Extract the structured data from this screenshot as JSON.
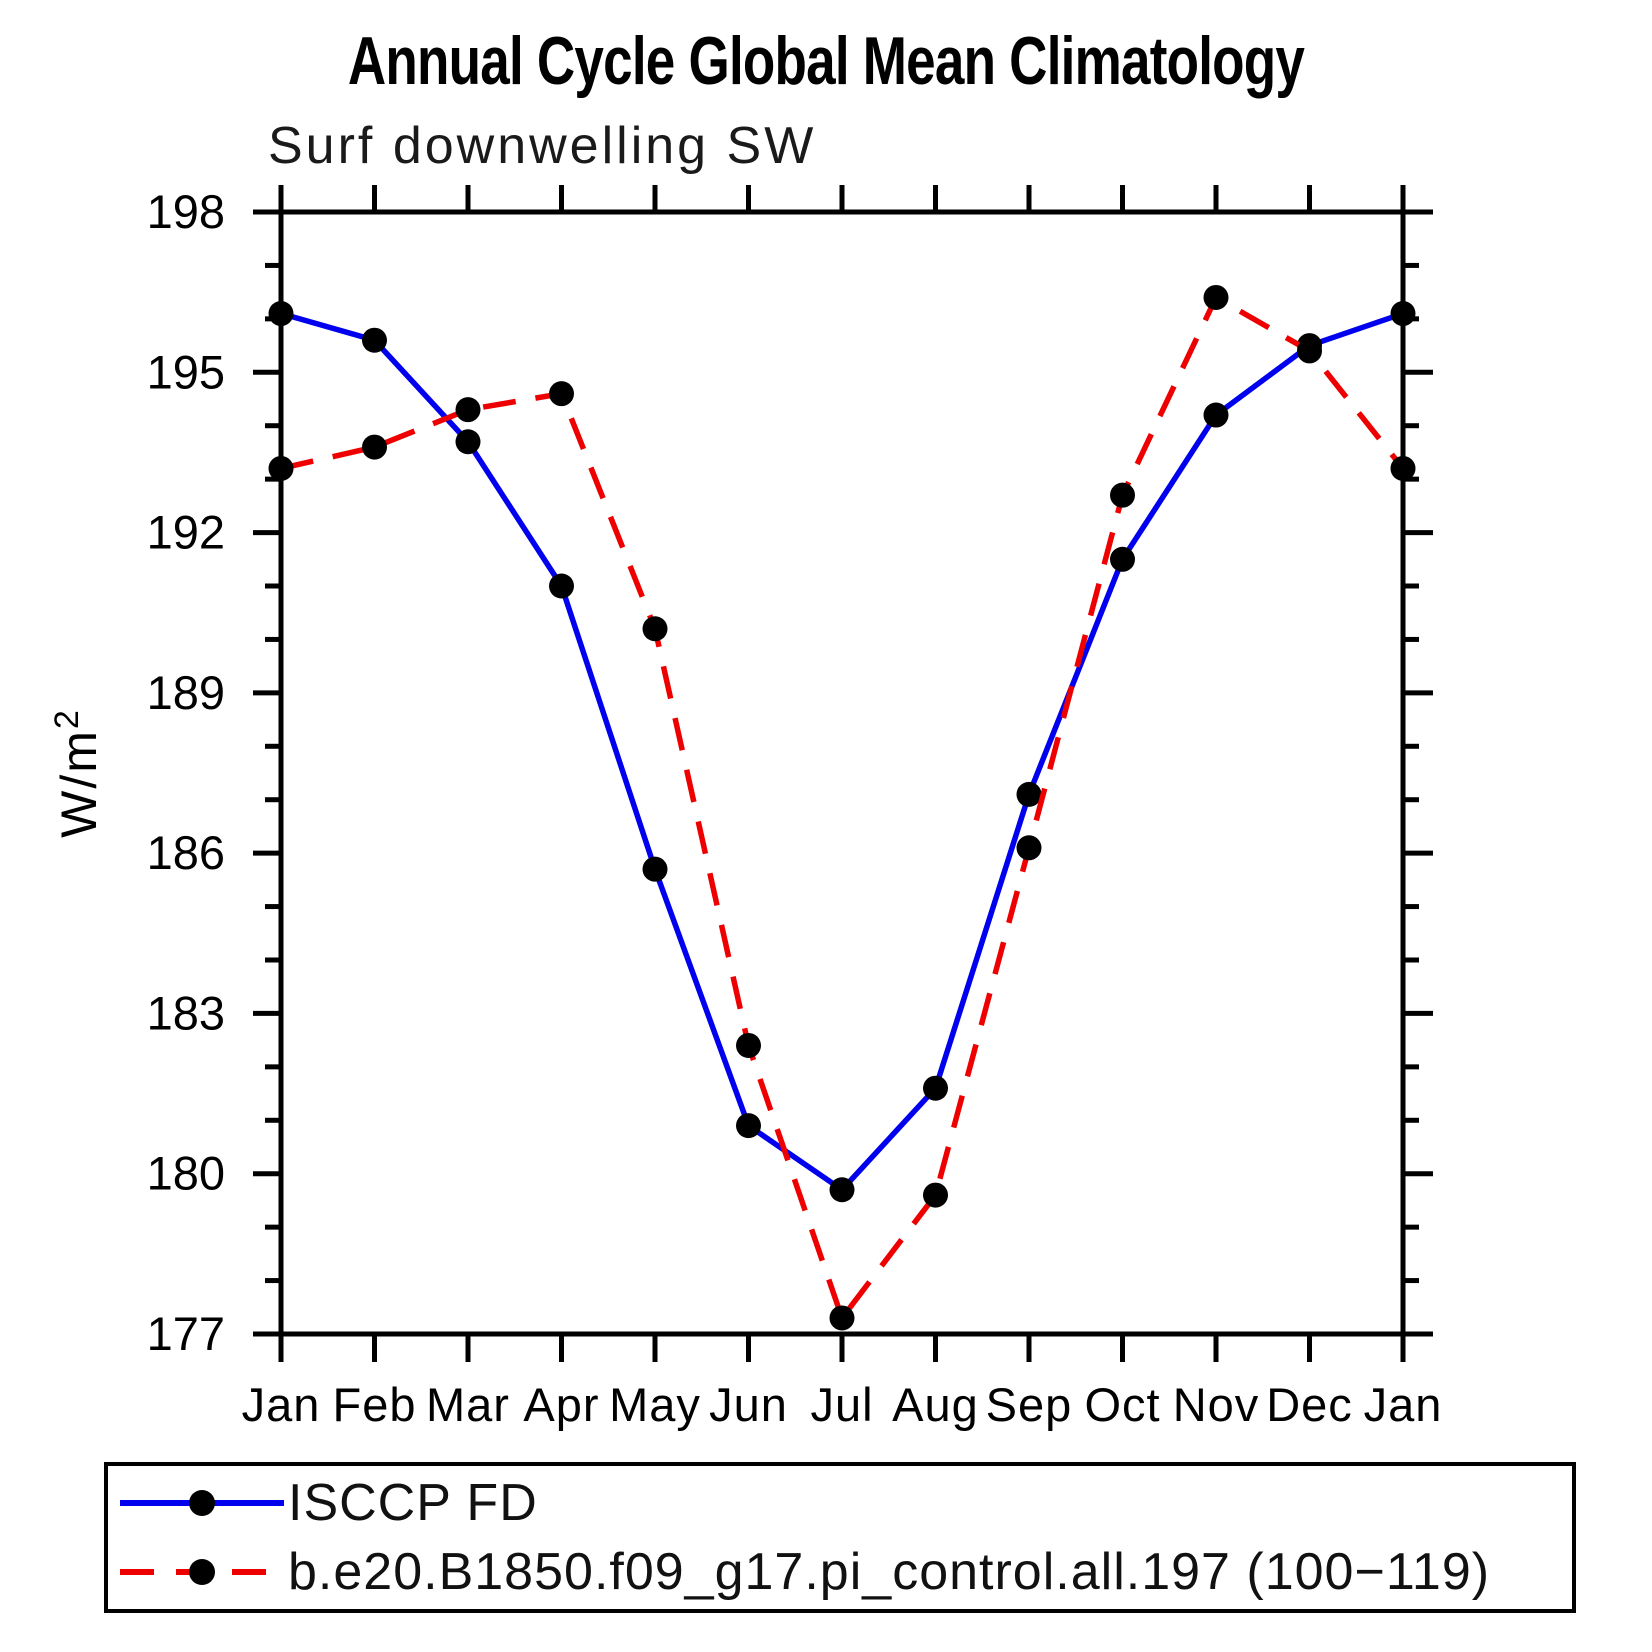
{
  "title": "Annual Cycle Global Mean Climatology",
  "chart_data": {
    "type": "line",
    "title": "Annual Cycle Global Mean Climatology",
    "subtitle": "Surf downwelling SW",
    "categories": [
      "Jan",
      "Feb",
      "Mar",
      "Apr",
      "May",
      "Jun",
      "Jul",
      "Aug",
      "Sep",
      "Oct",
      "Nov",
      "Dec",
      "Jan"
    ],
    "series": [
      {
        "name": "ISCCP FD",
        "color": "#0000ee",
        "line_style": "solid",
        "marker": "black-circle",
        "values": [
          196.1,
          195.6,
          193.7,
          191.0,
          185.7,
          180.9,
          179.7,
          181.6,
          187.1,
          191.5,
          194.2,
          195.5,
          196.1
        ]
      },
      {
        "name": "b.e20.B1850.f09_g17.pi_control.all.197 (100−119)",
        "color": "#ee0000",
        "line_style": "dashed",
        "marker": "black-circle",
        "values": [
          193.2,
          193.6,
          194.3,
          194.6,
          190.2,
          182.4,
          177.3,
          179.6,
          186.1,
          192.7,
          196.4,
          195.4,
          193.2
        ]
      }
    ],
    "xlabel": "",
    "ylabel_base": "W/m",
    "ylabel_exponent": "2",
    "ylim": [
      177,
      198
    ],
    "yticks_major": [
      177,
      180,
      183,
      186,
      189,
      192,
      195,
      198
    ],
    "ytick_minor_step": 1,
    "grid": false,
    "legend_position": "bottom-left-box",
    "axis_color": "#000000"
  }
}
